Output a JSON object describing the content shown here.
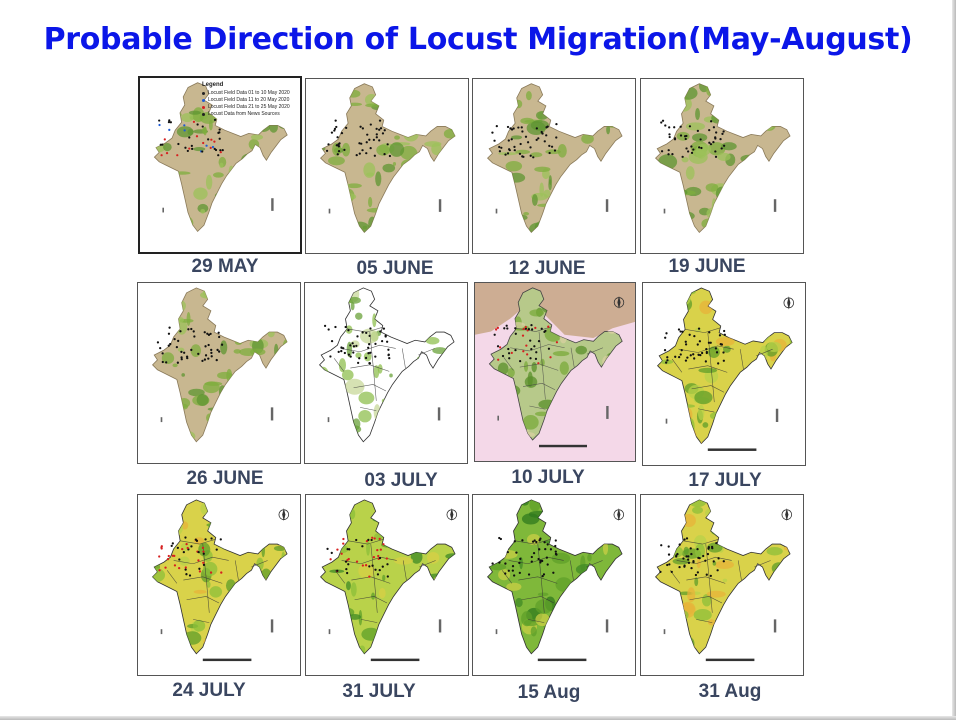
{
  "title": "Probable Direction of Locust Migration(May-August)",
  "legend": {
    "title": "Legend",
    "items": [
      {
        "text": "Locust Field Data 01 to 10 May 2020",
        "color": "#222222"
      },
      {
        "text": "Locust Field Data 11 to 20 May 2020",
        "color": "#1e5bd6"
      },
      {
        "text": "Locust Field Data 21 to 25 May 2020",
        "color": "#d62020"
      },
      {
        "text": "Locust Data from News Sources",
        "color": "#222222"
      }
    ]
  },
  "maps": [
    {
      "id": "29-may",
      "date": "29 MAY",
      "style": "beige"
    },
    {
      "id": "05-june",
      "date": "05 JUNE",
      "style": "beige"
    },
    {
      "id": "12-june",
      "date": "12 JUNE",
      "style": "beige"
    },
    {
      "id": "19-june",
      "date": "19 JUNE",
      "style": "beige"
    },
    {
      "id": "26-june",
      "date": "26 JUNE",
      "style": "beige"
    },
    {
      "id": "03-july",
      "date": "03 JULY",
      "style": "white"
    },
    {
      "id": "10-july",
      "date": "10 JULY",
      "style": "pink"
    },
    {
      "id": "17-july",
      "date": "17 JULY",
      "style": "yellowgreen"
    },
    {
      "id": "24-july",
      "date": "24 JULY",
      "style": "yellowgreen"
    },
    {
      "id": "31-july",
      "date": "31 JULY",
      "style": "green"
    },
    {
      "id": "15-aug",
      "date": "15 Aug",
      "style": "deepgreen"
    },
    {
      "id": "31-aug",
      "date": "31 Aug",
      "style": "yellowgreen"
    }
  ]
}
